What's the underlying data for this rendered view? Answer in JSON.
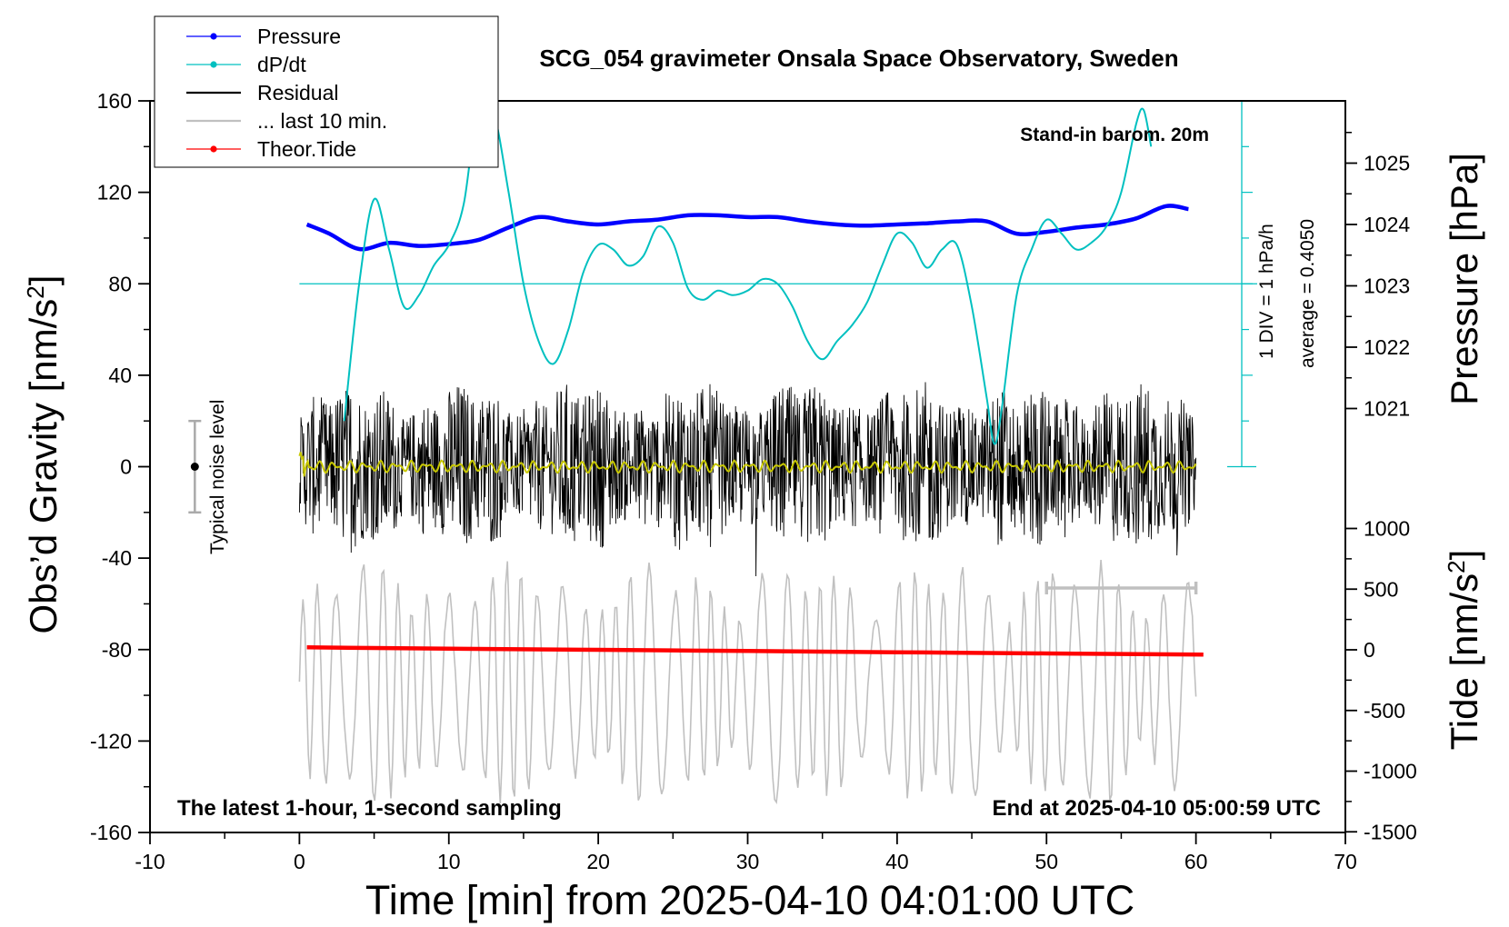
{
  "chart_data": {
    "type": "line",
    "title": "SCG_054 gravimeter Onsala Space Observatory, Sweden",
    "xlabel": "Time [min] from 2025-04-10 04:01:00 UTC",
    "ylabel_left": "Obs’d Gravity [nm/s",
    "ylabel_left_sup": "2",
    "ylabel_left_end": "]",
    "ylabel_right_pressure": "Pressure [hPa]",
    "ylabel_right_tide": "Tide [nm/s",
    "ylabel_right_tide_sup": "2",
    "ylabel_right_tide_end": "]",
    "xlim": [
      -10,
      70
    ],
    "ylim": [
      -160,
      160
    ],
    "x_ticks": [
      "-10",
      "0",
      "10",
      "20",
      "30",
      "40",
      "50",
      "60",
      "70"
    ],
    "y_ticks": [
      "160",
      "120",
      "80",
      "40",
      "0",
      "-40",
      "-80",
      "-120",
      "-160"
    ],
    "pressure_ticks": [
      "1025",
      "1024",
      "1023",
      "1022",
      "1021"
    ],
    "tide_ticks": [
      "1000",
      "500",
      "0",
      "-500",
      "-1000",
      "-1500"
    ],
    "legend": {
      "position": "top-left",
      "entries": [
        {
          "label": "Pressure",
          "color": "#0000ff",
          "marker": true
        },
        {
          "label": "dP/dt",
          "color": "#00c0c0",
          "marker": true
        },
        {
          "label": "Residual",
          "color": "#000000",
          "marker": false
        },
        {
          "label": "... last 10 min.",
          "color": "#c0c0c0",
          "marker": false
        },
        {
          "label": "Theor.Tide",
          "color": "#ff0000",
          "marker": true
        }
      ]
    },
    "annotations": {
      "barometer": "Stand-in barom. 20m",
      "scale_div": "1 DIV = 1 hPa/h",
      "average": "average = 0.4050",
      "noise": "Typical noise level",
      "bottom_left": "The latest 1-hour, 1-second sampling",
      "bottom_right": "End at 2025-04-10 05:00:59 UTC"
    },
    "series": [
      {
        "name": "Pressure",
        "axis": "pressure_hPa",
        "color": "#0000ff",
        "x": [
          0.5,
          2,
          4,
          6,
          8,
          10,
          12,
          14,
          16,
          18,
          20,
          22,
          24,
          26,
          28,
          30,
          32,
          34,
          36,
          38,
          40,
          42,
          44,
          46,
          48,
          50,
          52,
          54,
          56,
          58,
          59.5
        ],
        "values": [
          1024.0,
          1023.85,
          1023.6,
          1023.7,
          1023.65,
          1023.68,
          1023.75,
          1023.95,
          1024.12,
          1024.05,
          1024.0,
          1024.05,
          1024.08,
          1024.15,
          1024.15,
          1024.12,
          1024.12,
          1024.05,
          1024.0,
          1023.98,
          1024.0,
          1024.02,
          1024.05,
          1024.05,
          1023.85,
          1023.88,
          1023.95,
          1024.0,
          1024.1,
          1024.3,
          1024.25
        ]
      },
      {
        "name": "dP/dt",
        "axis": "gravity_nm_s2",
        "color": "#00c0c0",
        "x": [
          3,
          4,
          5,
          6,
          7,
          8,
          9,
          10,
          11,
          12,
          13,
          14,
          15,
          16,
          17,
          18,
          19,
          20,
          21,
          22,
          23,
          24,
          25,
          26,
          27,
          28,
          29,
          30,
          31,
          32,
          33,
          34,
          35,
          36,
          37,
          38,
          39,
          40,
          41,
          42,
          43,
          44,
          45,
          46,
          46.5,
          47,
          48,
          49,
          50,
          51,
          52,
          53,
          54,
          55,
          56,
          56.5,
          57
        ],
        "values": [
          20,
          80,
          117,
          95,
          70,
          75,
          88,
          97,
          115,
          160,
          155,
          120,
          80,
          55,
          45,
          60,
          85,
          97,
          95,
          88,
          92,
          105,
          98,
          78,
          73,
          77,
          75,
          77,
          82,
          80,
          70,
          55,
          47,
          55,
          62,
          72,
          88,
          102,
          98,
          87,
          95,
          97,
          70,
          30,
          10,
          25,
          75,
          95,
          108,
          102,
          95,
          98,
          105,
          120,
          150,
          156,
          140
        ]
      },
      {
        "name": "Theor.Tide",
        "axis": "tide_nm_s2",
        "color": "#ff0000",
        "x": [
          0.5,
          10,
          20,
          30,
          40,
          50,
          60.5
        ],
        "values": [
          20,
          10,
          0,
          -10,
          -20,
          -30,
          -40
        ]
      }
    ]
  }
}
